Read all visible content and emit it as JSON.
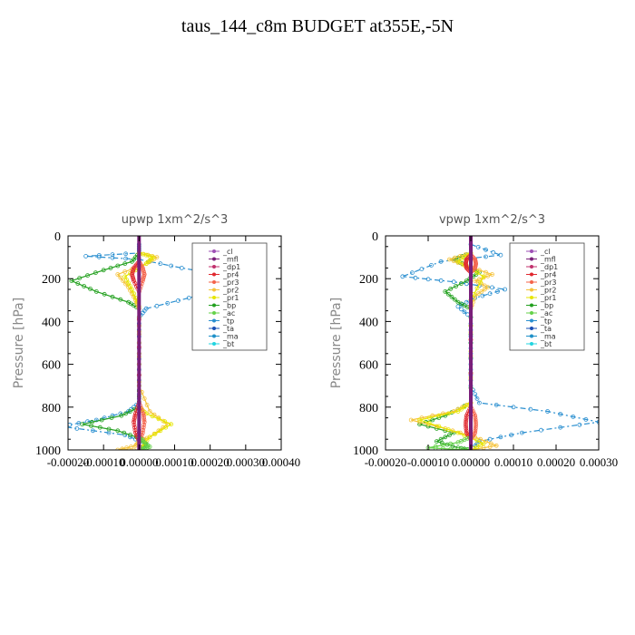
{
  "title": "taus_144_c8m  BUDGET at355E,-5N",
  "legend_colors": {
    "_cl": "#9e4fb5",
    "_mfl": "#7a1f7a",
    "_dp1": "#c1316d",
    "_pr4": "#e0282e",
    "_pr3": "#f4634a",
    "_pr2": "#f5c33b",
    "_pr1": "#e6e600",
    "_bp": "#22a01e",
    "_ac": "#65d24a",
    "_tp": "#2a8fd0",
    "_ta": "#1a4fb5",
    "_ma": "#1e90c8",
    "_bt": "#22d4e0"
  },
  "chart_data": [
    {
      "type": "line",
      "title": "upwp   1xm^2/s^3",
      "ylabel": "Pressure [hPa]",
      "xlim": [
        -0.0002,
        0.0004
      ],
      "ylim": [
        1000,
        0
      ],
      "xticks": [
        -0.0002,
        -0.0001,
        0.0,
        0.0001,
        0.0002,
        0.0003,
        0.0004
      ],
      "xtick_labels": [
        "-0.00020",
        "-0.00010",
        "0.00000",
        "0.00010",
        "0.00020",
        "0.00030",
        "0.00040"
      ],
      "yticks": [
        0,
        200,
        400,
        600,
        800,
        1000
      ],
      "ytick_labels": [
        "0",
        "200",
        "400",
        "600",
        "800",
        "1000"
      ],
      "legend": [
        "_cl",
        "_mfl",
        "_dp1",
        "_pr4",
        "_pr3",
        "_pr2",
        "_pr1",
        "_bp",
        "_ac",
        "_tp",
        "_ta",
        "_ma",
        "_bt"
      ],
      "legend_position": "top-right",
      "series": [
        {
          "name": "_tp",
          "color": "#2a8fd0",
          "dash": "6,3,2,3",
          "x": [
            0,
            0,
            -0.00015,
            0,
            0.00012,
            0.00033,
            0.00014,
            2e-05,
            0,
            0,
            0,
            0,
            0,
            -3e-05,
            -0.00012,
            -0.00022,
            -4e-05,
            2e-05,
            0
          ],
          "y": [
            40,
            80,
            95,
            110,
            150,
            210,
            290,
            340,
            380,
            500,
            600,
            700,
            780,
            820,
            860,
            890,
            930,
            970,
            1000
          ]
        },
        {
          "name": "_bp",
          "color": "#22a01e",
          "dash": "none",
          "x": [
            0,
            -2e-05,
            -0.0001,
            -0.00019,
            -0.00012,
            -3e-05,
            0,
            0,
            0,
            0,
            -5e-05,
            -0.00016,
            -6e-05,
            1e-05,
            2e-05,
            0
          ],
          "y": [
            80,
            120,
            160,
            210,
            260,
            310,
            340,
            500,
            700,
            800,
            840,
            880,
            910,
            950,
            980,
            1000
          ]
        },
        {
          "name": "_pr2",
          "color": "#f5c33b",
          "dash": "none",
          "x": [
            0,
            5e-05,
            2e-05,
            -6e-05,
            -3e-05,
            -1e-05,
            0,
            0,
            0,
            3e-05,
            8e-05,
            3e-05,
            0,
            -1e-05,
            -6e-05,
            0
          ],
          "y": [
            80,
            100,
            130,
            180,
            240,
            300,
            340,
            500,
            700,
            820,
            880,
            940,
            960,
            980,
            1000,
            1000
          ]
        },
        {
          "name": "_pr1",
          "color": "#e6e600",
          "dash": "none",
          "x": [
            0,
            4e-05,
            2e-05,
            -4e-05,
            -2e-05,
            0,
            0,
            2e-05,
            9e-05,
            3e-05,
            0
          ],
          "y": [
            80,
            100,
            130,
            190,
            250,
            330,
            800,
            830,
            880,
            940,
            1000
          ]
        },
        {
          "name": "_pr4",
          "color": "#e0282e",
          "dash": "none",
          "x": [
            0,
            -1.5e-05,
            -2e-05,
            -1.5e-05,
            0,
            0,
            -1e-05,
            -1.5e-05,
            -1e-05,
            0
          ],
          "y": [
            120,
            150,
            180,
            210,
            260,
            780,
            830,
            870,
            920,
            960
          ]
        },
        {
          "name": "_pr3",
          "color": "#f4634a",
          "dash": "none",
          "x": [
            0,
            1e-05,
            1.5e-05,
            1e-05,
            0,
            0,
            1.2e-05,
            1.5e-05,
            1e-05,
            0
          ],
          "y": [
            120,
            150,
            180,
            210,
            260,
            780,
            830,
            870,
            920,
            960
          ]
        },
        {
          "name": "_ac",
          "color": "#65d24a",
          "dash": "none",
          "x": [
            0,
            1e-05,
            3e-05,
            1e-05,
            0
          ],
          "y": [
            940,
            960,
            985,
            995,
            1000
          ]
        },
        {
          "name": "_mfl",
          "color": "#7a1f7a",
          "dash": "none",
          "width": 4,
          "x": [
            0,
            0
          ],
          "y": [
            0,
            1000
          ]
        }
      ]
    },
    {
      "type": "line",
      "title": "vpwp   1xm^2/s^3",
      "ylabel": "Pressure [hPa]",
      "xlim": [
        -0.0002,
        0.0003
      ],
      "ylim": [
        1000,
        0
      ],
      "xticks": [
        -0.0002,
        -0.0001,
        0.0,
        0.0001,
        0.0002,
        0.0003
      ],
      "xtick_labels": [
        "-0.00020",
        "-0.00010",
        "0.00000",
        "0.00010",
        "0.00020",
        "0.00030"
      ],
      "yticks": [
        0,
        200,
        400,
        600,
        800,
        1000
      ],
      "ytick_labels": [
        "0",
        "200",
        "400",
        "600",
        "800",
        "1000"
      ],
      "legend": [
        "_cl",
        "_mfl",
        "_dp1",
        "_pr4",
        "_pr3",
        "_pr2",
        "_pr1",
        "_bp",
        "_ac",
        "_tp",
        "_ta",
        "_ma",
        "_bt"
      ],
      "legend_position": "top-right",
      "series": [
        {
          "name": "_tp",
          "color": "#2a8fd0",
          "dash": "6,3,2,3",
          "x": [
            0,
            7e-05,
            -7e-05,
            -0.00016,
            -4e-05,
            8e-05,
            1e-05,
            -3e-05,
            0,
            0,
            0,
            0,
            2e-05,
            0.00018,
            0.0003,
            0.00012,
            2e-05,
            0
          ],
          "y": [
            40,
            90,
            120,
            190,
            215,
            250,
            290,
            330,
            380,
            500,
            600,
            700,
            780,
            820,
            870,
            920,
            960,
            1000
          ]
        },
        {
          "name": "_bp",
          "color": "#22a01e",
          "dash": "none",
          "x": [
            0,
            -4e-05,
            -2e-05,
            2e-05,
            -1e-05,
            -6e-05,
            -3e-05,
            0,
            0,
            0,
            -6e-05,
            -0.00012,
            -4e-05,
            -8e-05,
            -3e-05,
            0
          ],
          "y": [
            80,
            110,
            130,
            170,
            210,
            260,
            310,
            340,
            500,
            780,
            840,
            880,
            920,
            960,
            990,
            1000
          ]
        },
        {
          "name": "_pr2",
          "color": "#f5c33b",
          "dash": "none",
          "x": [
            0,
            -5e-05,
            -1e-05,
            5e-05,
            1e-05,
            4e-05,
            1e-05,
            0,
            0,
            -4e-05,
            -0.00014,
            -6e-05,
            1e-05,
            6e-05,
            0
          ],
          "y": [
            80,
            110,
            140,
            180,
            210,
            240,
            280,
            340,
            780,
            820,
            860,
            900,
            940,
            980,
            1000
          ]
        },
        {
          "name": "_pr1",
          "color": "#e6e600",
          "dash": "none",
          "x": [
            0,
            -3e-05,
            3e-05,
            0,
            0,
            -3e-05,
            -0.00012,
            -3e-05,
            3e-05,
            0
          ],
          "y": [
            80,
            120,
            190,
            300,
            780,
            820,
            860,
            920,
            970,
            1000
          ]
        },
        {
          "name": "_pr4",
          "color": "#e0282e",
          "dash": "none",
          "x": [
            0,
            -1e-05,
            -1.2e-05,
            -1e-05,
            0,
            0,
            -1e-05,
            -1.2e-05,
            -1e-05,
            0
          ],
          "y": [
            90,
            110,
            130,
            150,
            170,
            800,
            840,
            880,
            920,
            950
          ]
        },
        {
          "name": "_pr3",
          "color": "#f4634a",
          "dash": "none",
          "x": [
            0,
            1e-05,
            1.2e-05,
            1e-05,
            0,
            0,
            1e-05,
            1.2e-05,
            1e-05,
            0
          ],
          "y": [
            90,
            110,
            130,
            150,
            170,
            800,
            840,
            880,
            920,
            950
          ]
        },
        {
          "name": "_ac",
          "color": "#65d24a",
          "dash": "none",
          "x": [
            0,
            -3e-05,
            -0.0001,
            -3e-05,
            0
          ],
          "y": [
            940,
            965,
            990,
            998,
            1000
          ]
        },
        {
          "name": "_mfl",
          "color": "#7a1f7a",
          "dash": "none",
          "width": 4,
          "x": [
            0,
            0
          ],
          "y": [
            0,
            1000
          ]
        }
      ]
    }
  ]
}
